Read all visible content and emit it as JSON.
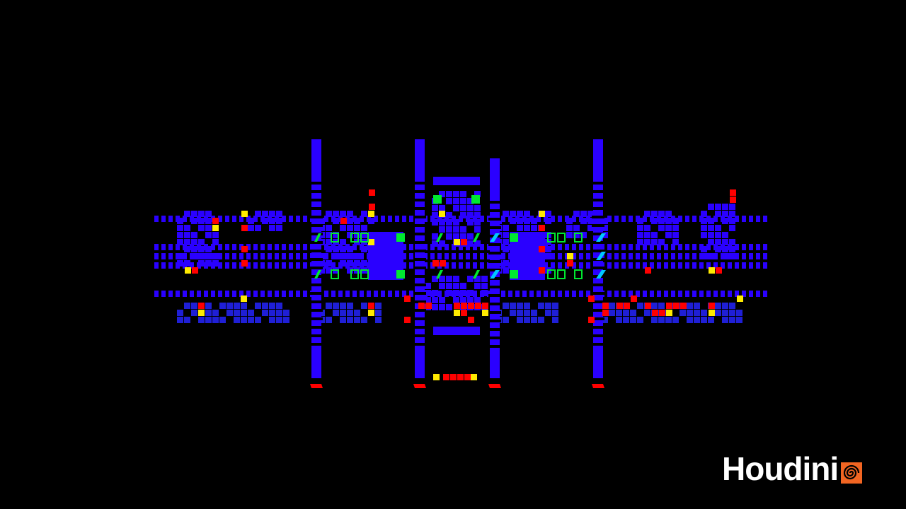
{
  "viewport": {
    "name": "network-view",
    "background": "#000000"
  },
  "palette": {
    "node": "#2a00ff",
    "node_dark": "#1f1fd6",
    "flag_yellow": "#ffea00",
    "flag_red": "#ff0000",
    "marker_green": "#00e830",
    "marker_cyan": "#00c8ff"
  },
  "brand": {
    "wordmark": "Houdini",
    "icon": "houdini-swirl-icon",
    "icon_color": "#f26522"
  }
}
